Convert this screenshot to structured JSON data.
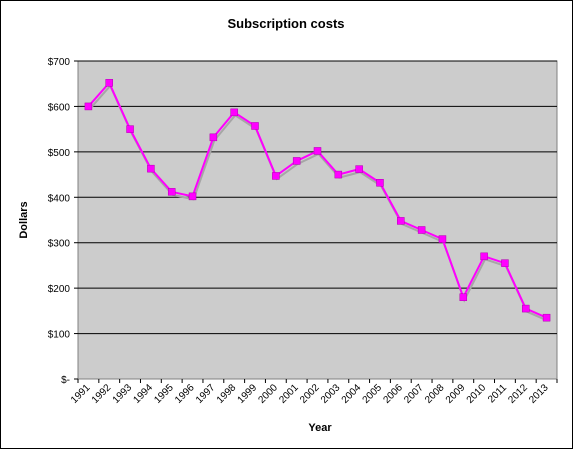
{
  "chart_data": {
    "type": "line",
    "title": "Subscription costs",
    "xlabel": "Year",
    "ylabel": "Dollars",
    "x": [
      "1991",
      "1992",
      "1993",
      "1994",
      "1995",
      "1996",
      "1997",
      "1998",
      "1999",
      "2000",
      "2001",
      "2002",
      "2003",
      "2004",
      "2005",
      "2006",
      "2007",
      "2008",
      "2009",
      "2010",
      "2011",
      "2012",
      "2013"
    ],
    "y_ticks": [
      "$-",
      "$100",
      "$200",
      "$300",
      "$400",
      "$500",
      "$600",
      "$700"
    ],
    "ylim": [
      0,
      700
    ],
    "grid": true,
    "plot_background": "#cccccc",
    "series": [
      {
        "color": "#ff00ff",
        "values": [
          600,
          652,
          550,
          463,
          412,
          402,
          532,
          587,
          557,
          447,
          480,
          502,
          450,
          462,
          432,
          348,
          328,
          308,
          180,
          270,
          255,
          155,
          135
        ]
      }
    ]
  }
}
